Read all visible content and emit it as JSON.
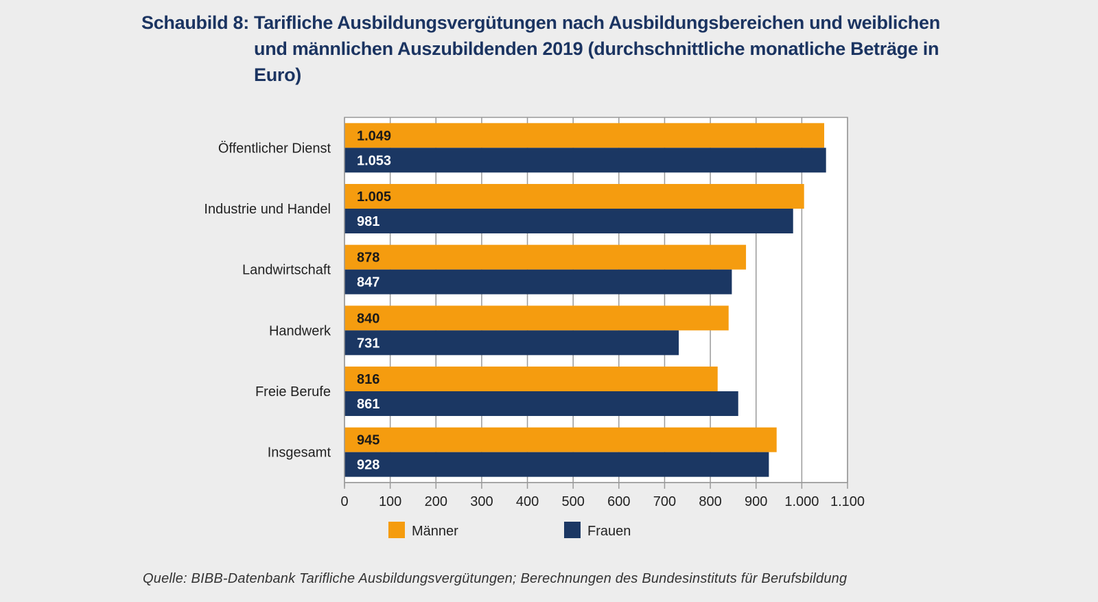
{
  "title": {
    "prefix": "Schaubild 8:",
    "text": "Tarifliche Ausbildungsvergütungen nach Ausbildungsbereichen und weiblichen und männlichen Auszubildenden 2019 (durchschnittliche monatliche Beträge in Euro)"
  },
  "source": "Quelle: BIBB-Datenbank Tarifliche Ausbildungsvergütungen; Berechnungen des Bundesinstituts für Berufsbildung",
  "chart_data": {
    "type": "bar",
    "orientation": "horizontal",
    "title": "Schaubild 8: Tarifliche Ausbildungsvergütungen nach Ausbildungsbereichen und weiblichen und männlichen Auszubildenden 2019 (durchschnittliche monatliche Beträge in Euro)",
    "xlabel": "",
    "ylabel": "",
    "categories": [
      "Öffentlicher Dienst",
      "Industrie und Handel",
      "Landwirtschaft",
      "Handwerk",
      "Freie Berufe",
      "Insgesamt"
    ],
    "series": [
      {
        "name": "Männer",
        "color": "#f59c0f",
        "label_color": "#1a1a1a",
        "values": [
          1049,
          1005,
          878,
          840,
          816,
          945
        ],
        "labels": [
          "1.049",
          "1.005",
          "878",
          "840",
          "816",
          "945"
        ]
      },
      {
        "name": "Frauen",
        "color": "#1b3763",
        "label_color": "#ffffff",
        "values": [
          1053,
          981,
          847,
          731,
          861,
          928
        ],
        "labels": [
          "1.053",
          "981",
          "847",
          "731",
          "861",
          "928"
        ]
      }
    ],
    "xlim": [
      0,
      1100
    ],
    "xticks": [
      0,
      100,
      200,
      300,
      400,
      500,
      600,
      700,
      800,
      900,
      1000,
      1100
    ],
    "xtick_labels": [
      "0",
      "100",
      "200",
      "300",
      "400",
      "500",
      "600",
      "700",
      "800",
      "900",
      "1.000",
      "1.100"
    ],
    "grid": true,
    "legend": {
      "placement": "bottom",
      "entries": [
        "Männer",
        "Frauen"
      ]
    }
  }
}
